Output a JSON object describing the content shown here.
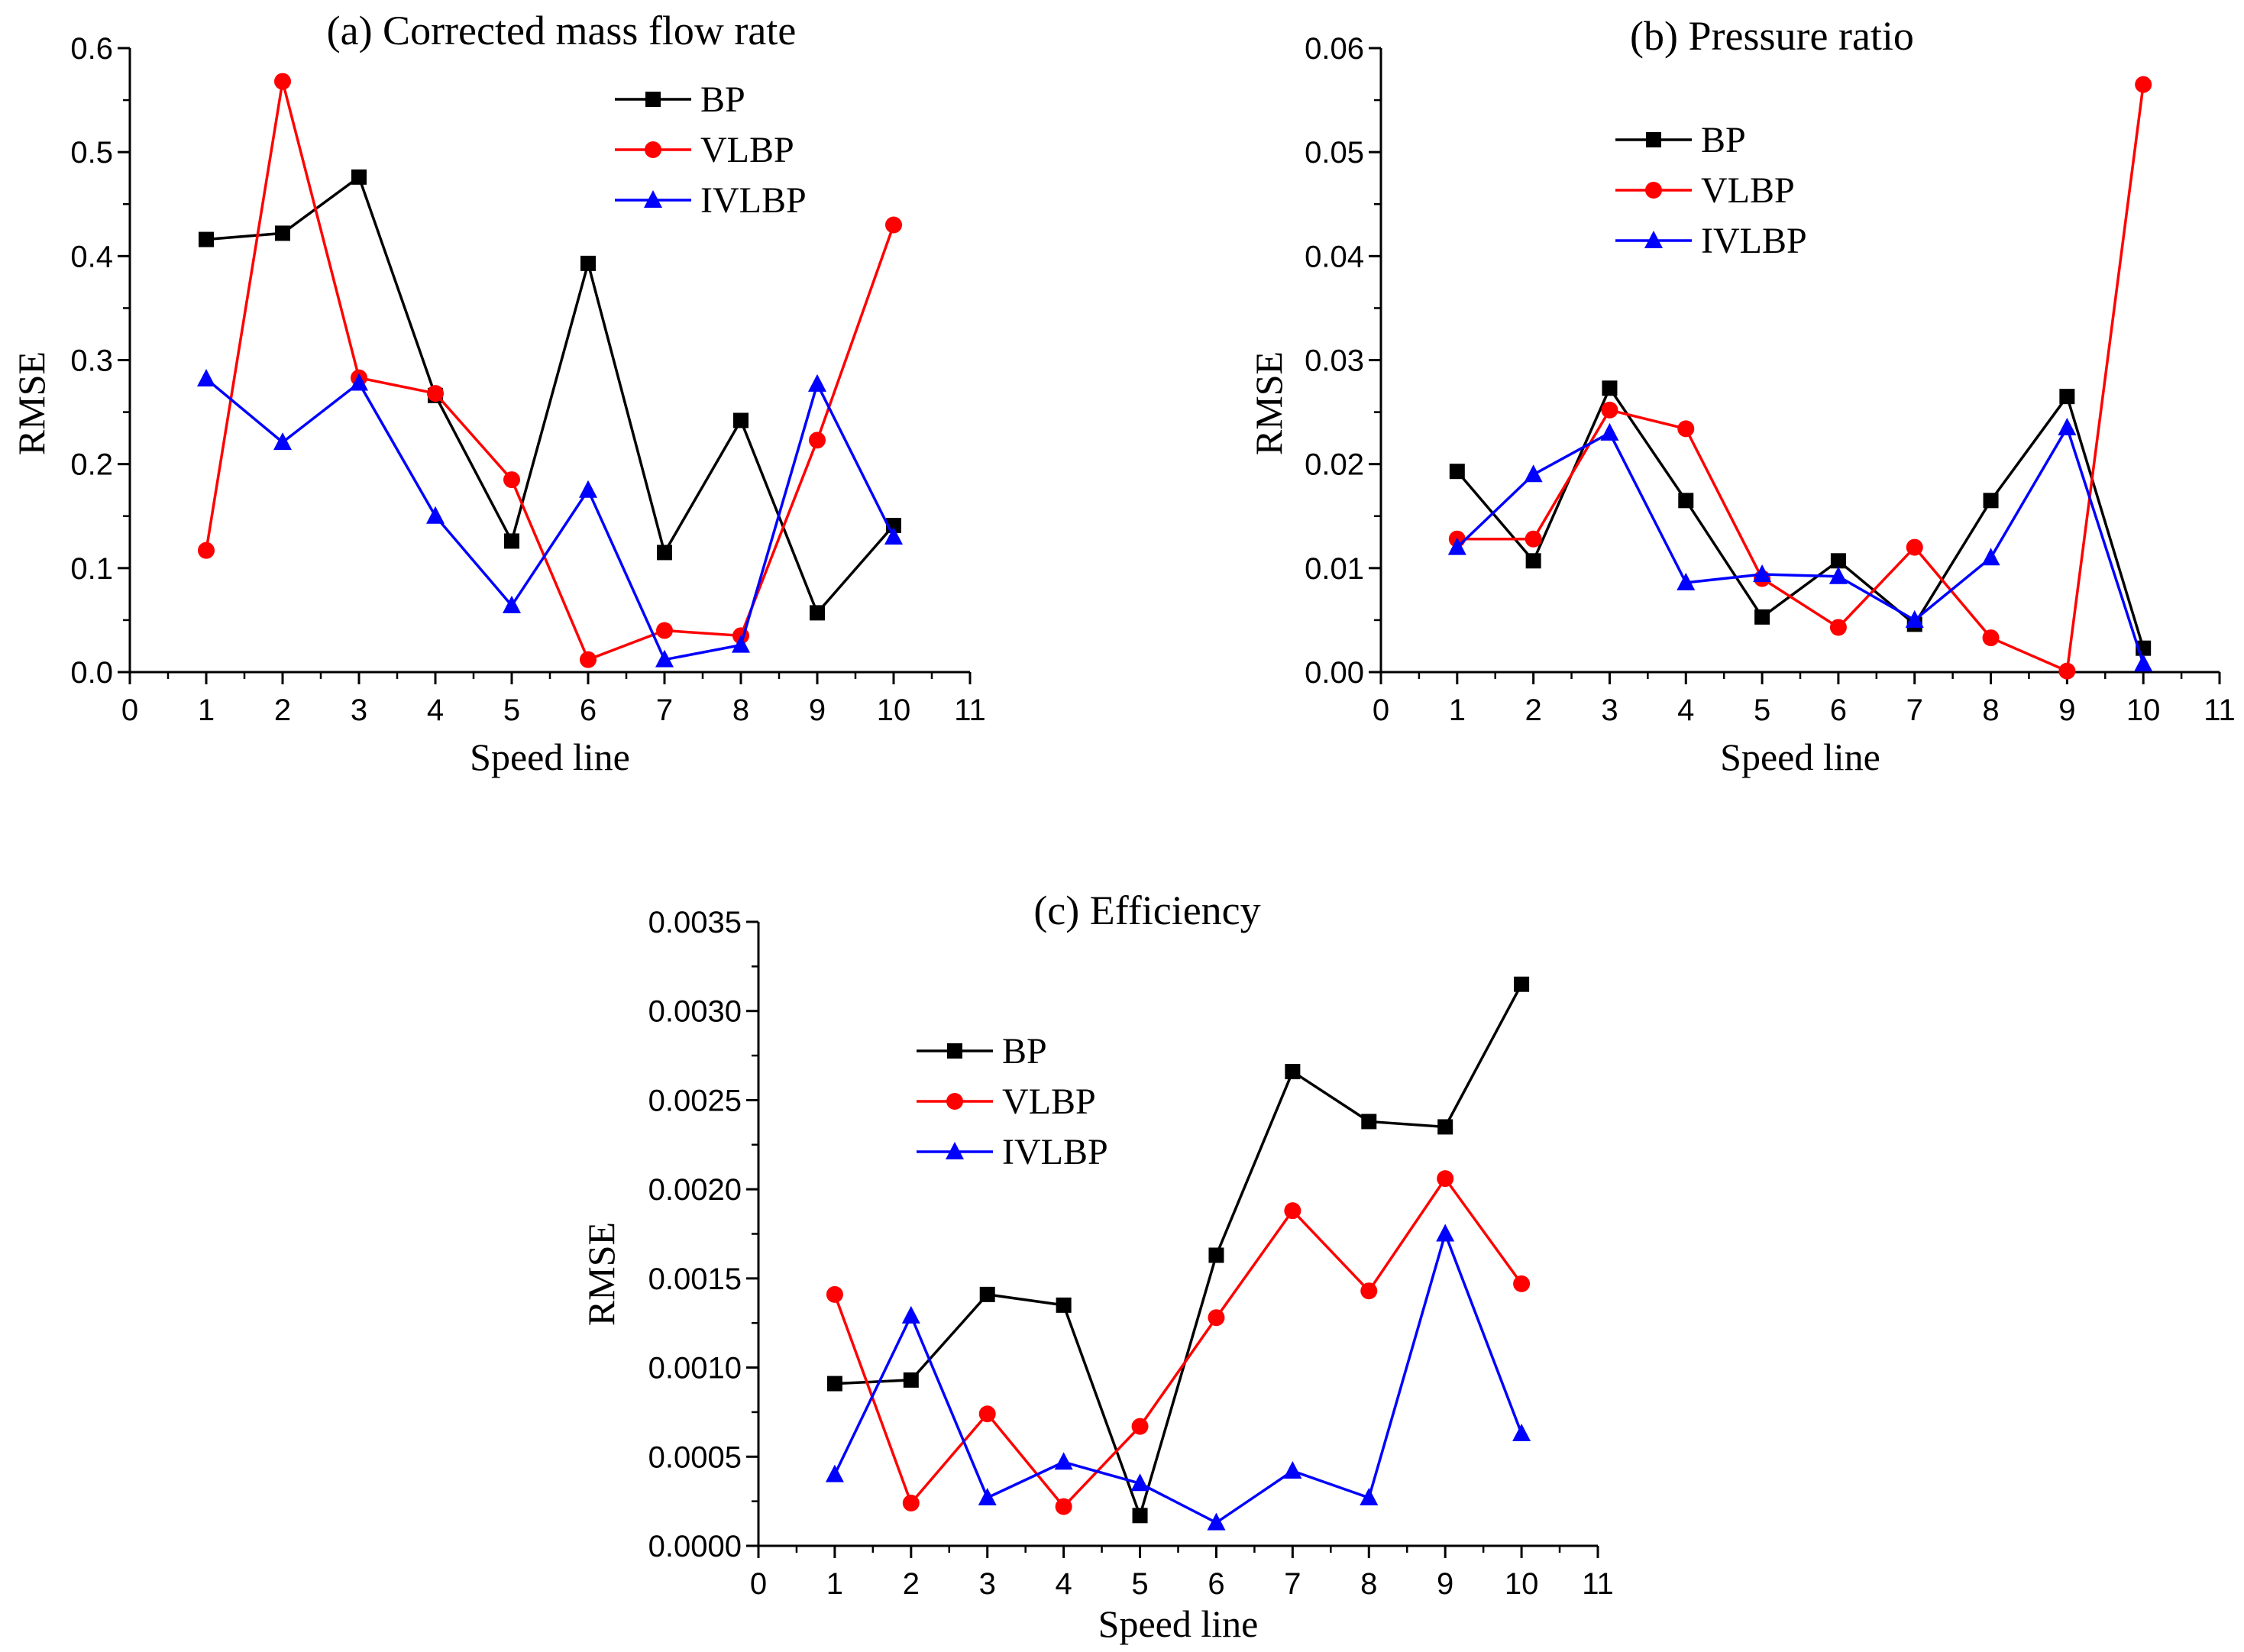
{
  "chart_data": [
    {
      "type": "line",
      "title": "(a) Corrected mass flow rate",
      "xlabel": "Speed line",
      "ylabel": "RMSE",
      "xlim": [
        0,
        11
      ],
      "ylim": [
        0,
        0.6
      ],
      "xticks": [
        "0",
        "1",
        "2",
        "3",
        "4",
        "5",
        "6",
        "7",
        "8",
        "9",
        "10",
        "11"
      ],
      "yticks": [
        "0.0",
        "0.1",
        "0.2",
        "0.3",
        "0.4",
        "0.5",
        "0.6"
      ],
      "legend_position": "top-center",
      "x": [
        1,
        2,
        3,
        4,
        5,
        6,
        7,
        8,
        9,
        10
      ],
      "series": [
        {
          "name": "BP",
          "color": "#000000",
          "marker": "square",
          "values": [
            0.416,
            0.422,
            0.476,
            0.266,
            0.126,
            0.393,
            0.115,
            0.242,
            0.057,
            0.141
          ]
        },
        {
          "name": "VLBP",
          "color": "#ff0000",
          "marker": "circle",
          "values": [
            0.117,
            0.568,
            0.283,
            0.268,
            0.185,
            0.012,
            0.04,
            0.035,
            0.223,
            0.43
          ]
        },
        {
          "name": "IVLBP",
          "color": "#0000ff",
          "marker": "triangle",
          "values": [
            0.282,
            0.221,
            0.278,
            0.15,
            0.064,
            0.175,
            0.012,
            0.026,
            0.277,
            0.13
          ]
        }
      ]
    },
    {
      "type": "line",
      "title": "(b) Pressure ratio",
      "xlabel": "Speed line",
      "ylabel": "RMSE",
      "xlim": [
        0,
        11
      ],
      "ylim": [
        0,
        0.06
      ],
      "xticks": [
        "0",
        "1",
        "2",
        "3",
        "4",
        "5",
        "6",
        "7",
        "8",
        "9",
        "10",
        "11"
      ],
      "yticks": [
        "0.00",
        "0.01",
        "0.02",
        "0.03",
        "0.04",
        "0.05",
        "0.06"
      ],
      "legend_position": "top-center",
      "x": [
        1,
        2,
        3,
        4,
        5,
        6,
        7,
        8,
        9,
        10
      ],
      "series": [
        {
          "name": "BP",
          "color": "#000000",
          "marker": "square",
          "values": [
            0.0193,
            0.0107,
            0.0273,
            0.0165,
            0.0053,
            0.0107,
            0.0046,
            0.0165,
            0.0265,
            0.0023
          ]
        },
        {
          "name": "VLBP",
          "color": "#ff0000",
          "marker": "circle",
          "values": [
            0.0128,
            0.0128,
            0.0252,
            0.0234,
            0.009,
            0.0043,
            0.012,
            0.0033,
            0.0001,
            0.0565
          ]
        },
        {
          "name": "IVLBP",
          "color": "#0000ff",
          "marker": "triangle",
          "values": [
            0.012,
            0.019,
            0.023,
            0.0086,
            0.0094,
            0.0092,
            0.005,
            0.011,
            0.0235,
            0.0008
          ]
        }
      ]
    },
    {
      "type": "line",
      "title": "(c) Efficiency",
      "xlabel": "Speed line",
      "ylabel": "RMSE",
      "xlim": [
        0,
        11
      ],
      "ylim": [
        0,
        0.0035
      ],
      "xticks": [
        "0",
        "1",
        "2",
        "3",
        "4",
        "5",
        "6",
        "7",
        "8",
        "9",
        "10",
        "11"
      ],
      "yticks": [
        "0.0000",
        "0.0005",
        "0.0010",
        "0.0015",
        "0.0020",
        "0.0025",
        "0.0030",
        "0.0035"
      ],
      "legend_position": "top-left",
      "x": [
        1,
        2,
        3,
        4,
        5,
        6,
        7,
        8,
        9,
        10
      ],
      "series": [
        {
          "name": "BP",
          "color": "#000000",
          "marker": "square",
          "values": [
            0.00091,
            0.00093,
            0.00141,
            0.00135,
            0.00017,
            0.00163,
            0.00266,
            0.00238,
            0.00235,
            0.00315
          ]
        },
        {
          "name": "VLBP",
          "color": "#ff0000",
          "marker": "circle",
          "values": [
            0.00141,
            0.00024,
            0.00074,
            0.00022,
            0.00067,
            0.00128,
            0.00188,
            0.00143,
            0.00206,
            0.00147
          ]
        },
        {
          "name": "IVLBP",
          "color": "#0000ff",
          "marker": "triangle",
          "values": [
            0.0004,
            0.00129,
            0.00027,
            0.00047,
            0.00035,
            0.00013,
            0.00042,
            0.00027,
            0.00175,
            0.00063
          ]
        }
      ]
    }
  ]
}
